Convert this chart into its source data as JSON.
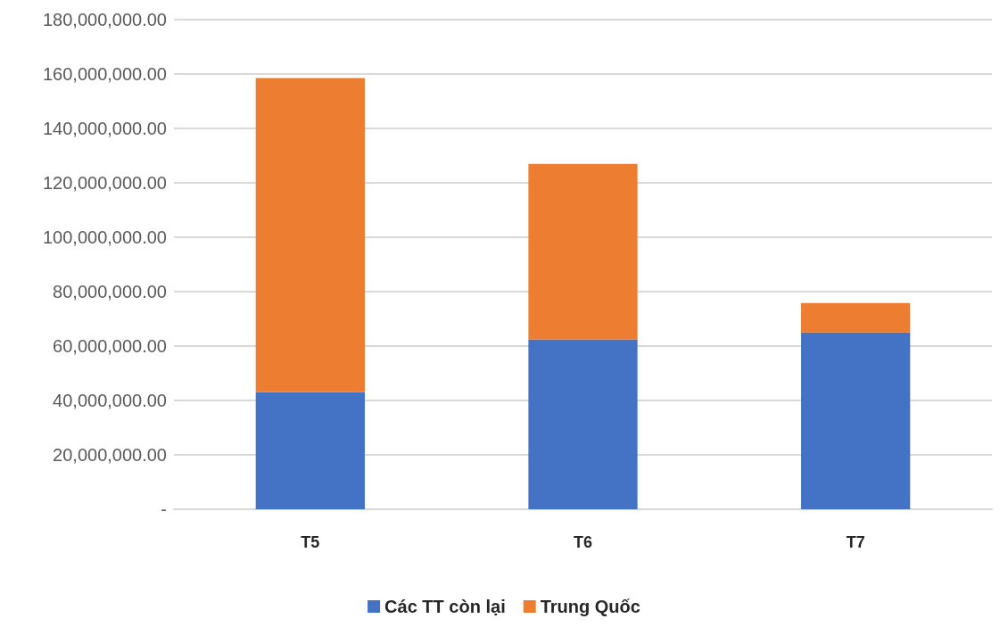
{
  "chart_data": {
    "type": "bar",
    "stacked": true,
    "categories": [
      "T5",
      "T6",
      "T7"
    ],
    "series": [
      {
        "name": "Các TT còn lại",
        "color": "#4472c4",
        "values": [
          43000000,
          62500000,
          65000000
        ]
      },
      {
        "name": "Trung Quốc",
        "color": "#ed7d31",
        "values": [
          115500000,
          64500000,
          10800000
        ]
      }
    ],
    "ylim": [
      0,
      180000000
    ],
    "yticks": [
      {
        "value": 0,
        "label": "-"
      },
      {
        "value": 20000000,
        "label": "20,000,000.00"
      },
      {
        "value": 40000000,
        "label": "40,000,000.00"
      },
      {
        "value": 60000000,
        "label": "60,000,000.00"
      },
      {
        "value": 80000000,
        "label": "80,000,000.00"
      },
      {
        "value": 100000000,
        "label": "100,000,000.00"
      },
      {
        "value": 120000000,
        "label": "120,000,000.00"
      },
      {
        "value": 140000000,
        "label": "140,000,000.00"
      },
      {
        "value": 160000000,
        "label": "160,000,000.00"
      },
      {
        "value": 180000000,
        "label": "180,000,000.00"
      }
    ],
    "grid": "y",
    "legend": "bottom"
  }
}
